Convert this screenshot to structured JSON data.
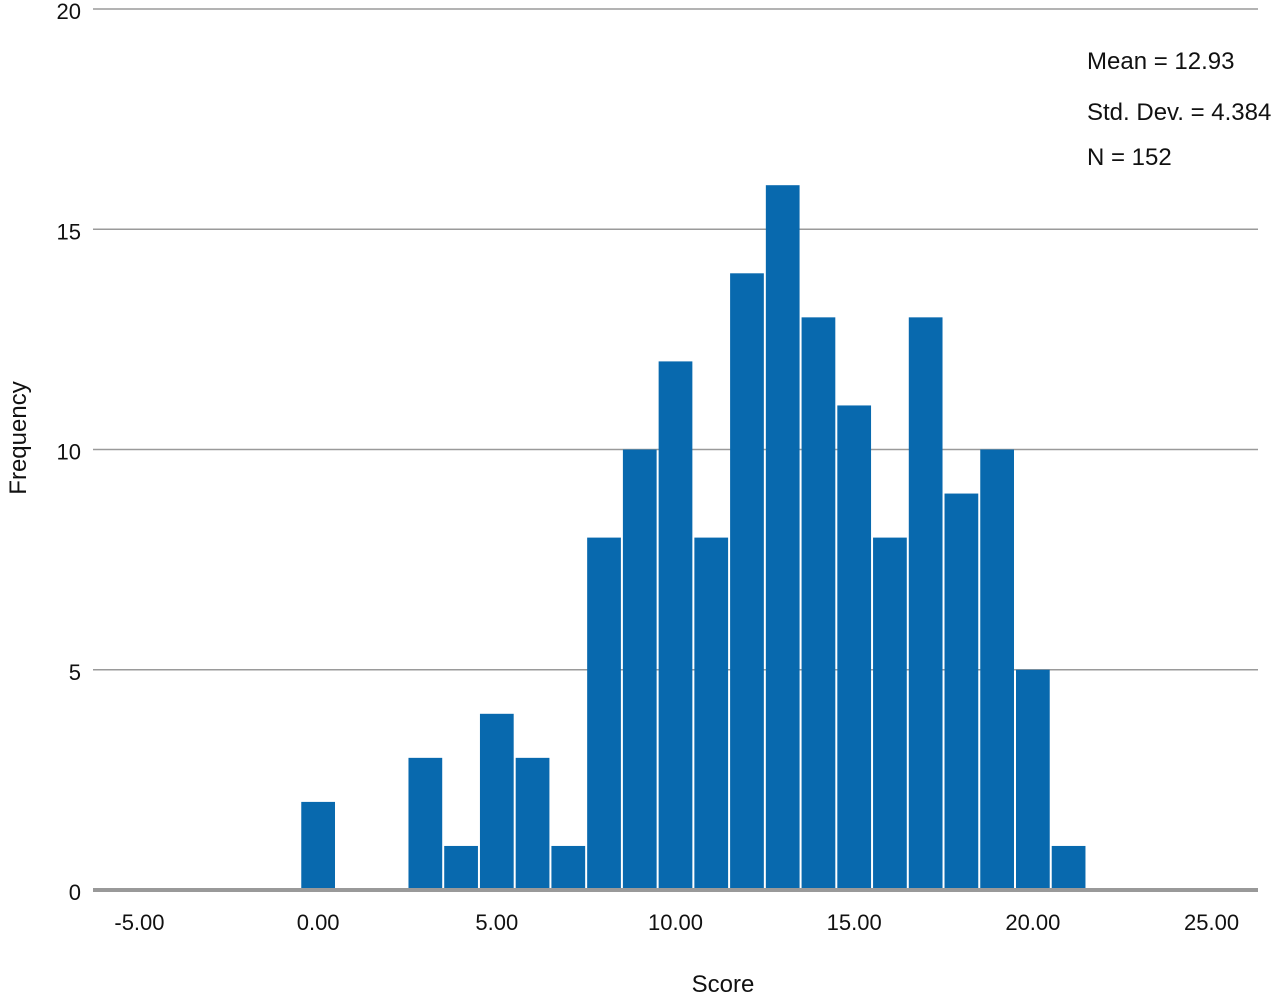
{
  "chart_data": {
    "type": "bar",
    "subtype": "histogram",
    "xlabel": "Score",
    "ylabel": "Frequency",
    "xlim": [
      -6.3,
      26.3
    ],
    "ylim": [
      0,
      20
    ],
    "x_ticks": [
      -5,
      0,
      5,
      10,
      15,
      20,
      25
    ],
    "x_tick_labels": [
      "-5.00",
      "0.00",
      "5.00",
      "10.00",
      "15.00",
      "20.00",
      "25.00"
    ],
    "y_ticks": [
      0,
      5,
      10,
      15,
      20
    ],
    "y_tick_labels": [
      "0",
      "5",
      "10",
      "15",
      "20"
    ],
    "bin_width": 1,
    "bins": [
      {
        "x_start": -0.5,
        "count": 2
      },
      {
        "x_start": 2.5,
        "count": 3
      },
      {
        "x_start": 3.5,
        "count": 1
      },
      {
        "x_start": 4.5,
        "count": 4
      },
      {
        "x_start": 5.5,
        "count": 3
      },
      {
        "x_start": 6.5,
        "count": 1
      },
      {
        "x_start": 7.5,
        "count": 8
      },
      {
        "x_start": 8.5,
        "count": 10
      },
      {
        "x_start": 9.5,
        "count": 12
      },
      {
        "x_start": 10.5,
        "count": 8
      },
      {
        "x_start": 11.5,
        "count": 14
      },
      {
        "x_start": 12.5,
        "count": 16
      },
      {
        "x_start": 13.5,
        "count": 13
      },
      {
        "x_start": 14.5,
        "count": 11
      },
      {
        "x_start": 15.5,
        "count": 8
      },
      {
        "x_start": 16.5,
        "count": 13
      },
      {
        "x_start": 17.5,
        "count": 9
      },
      {
        "x_start": 18.5,
        "count": 10
      },
      {
        "x_start": 19.5,
        "count": 5
      },
      {
        "x_start": 20.5,
        "count": 1
      }
    ],
    "grid": "horizontal",
    "bar_color": "#0869AE",
    "grid_color": "#9a9a9a",
    "baseline_color": "#999999",
    "stats": {
      "mean_label": "Mean = 12.93",
      "sd_label": "Std. Dev. = 4.384",
      "n_label": "N = 152",
      "placement": "top-right"
    }
  }
}
